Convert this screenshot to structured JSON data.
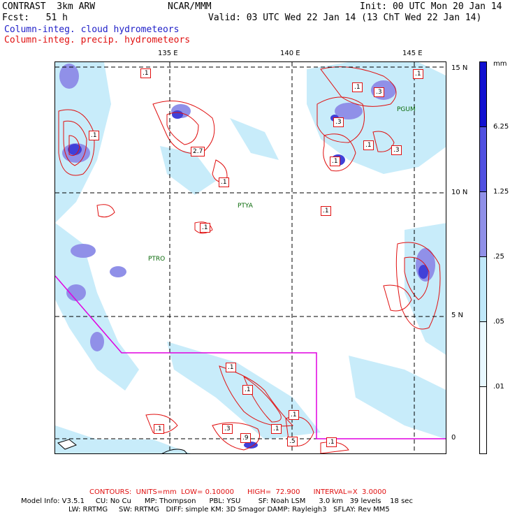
{
  "header": {
    "title": "CONTRAST  3km ARW",
    "forecast": "Fcst:   51 h",
    "center": "NCAR/MMM",
    "init": "Init: 00 UTC Mon 20 Jan 14",
    "valid": "Valid: 03 UTC Wed 22 Jan 14 (13 ChT Wed 22 Jan 14)",
    "field_cloud": "Column-integ. cloud hydrometeors",
    "field_precip": "Column-integ. precip. hydrometeors"
  },
  "colors": {
    "cloud": "#2020c8",
    "precip": "#e01010",
    "boundary": "#e000e0",
    "station": "#0a6a0a",
    "shade_1": "#e8f8ff",
    "shade_2": "#c0e8fa",
    "shade_3": "#9090e8",
    "shade_4": "#5050e0",
    "shade_5": "#1010d0"
  },
  "axes": {
    "lon_ticks": [
      "135 E",
      "140 E",
      "145 E"
    ],
    "lat_ticks": [
      "15 N",
      "10 N",
      "5 N",
      "0"
    ]
  },
  "colorbar": {
    "unit": "mm",
    "labels": [
      "6.25",
      "1.25",
      ".25",
      ".05",
      ".01"
    ]
  },
  "stations": [
    "PGUM",
    "PTYA",
    "PTRO"
  ],
  "contour_labels": [
    ".1",
    ".1",
    ".3",
    ".1",
    ".1",
    ".3",
    ".1",
    "2.7",
    ".1",
    ".1",
    ".1",
    ".3",
    ".1",
    ".1",
    ".1",
    ".1",
    ".1",
    ".3",
    ".9",
    ".1",
    ".5",
    ".1"
  ],
  "footer": {
    "contours_line": "CONTOURS:  UNITS=mm  LOW= 0.10000      HIGH=  72.900      INTERVAL=X  3.0000",
    "model_line1": "Model Info: V3.5.1     CU: No Cu      MP: Thompson      PBL: YSU        SF: Noah LSM      3.0 km   39 levels    18 sec",
    "model_line2": "LW: RRTMG     SW: RRTMG   DIFF: simple KM: 3D Smagor DAMP: Rayleigh3   SFLAY: Rev MM5"
  }
}
